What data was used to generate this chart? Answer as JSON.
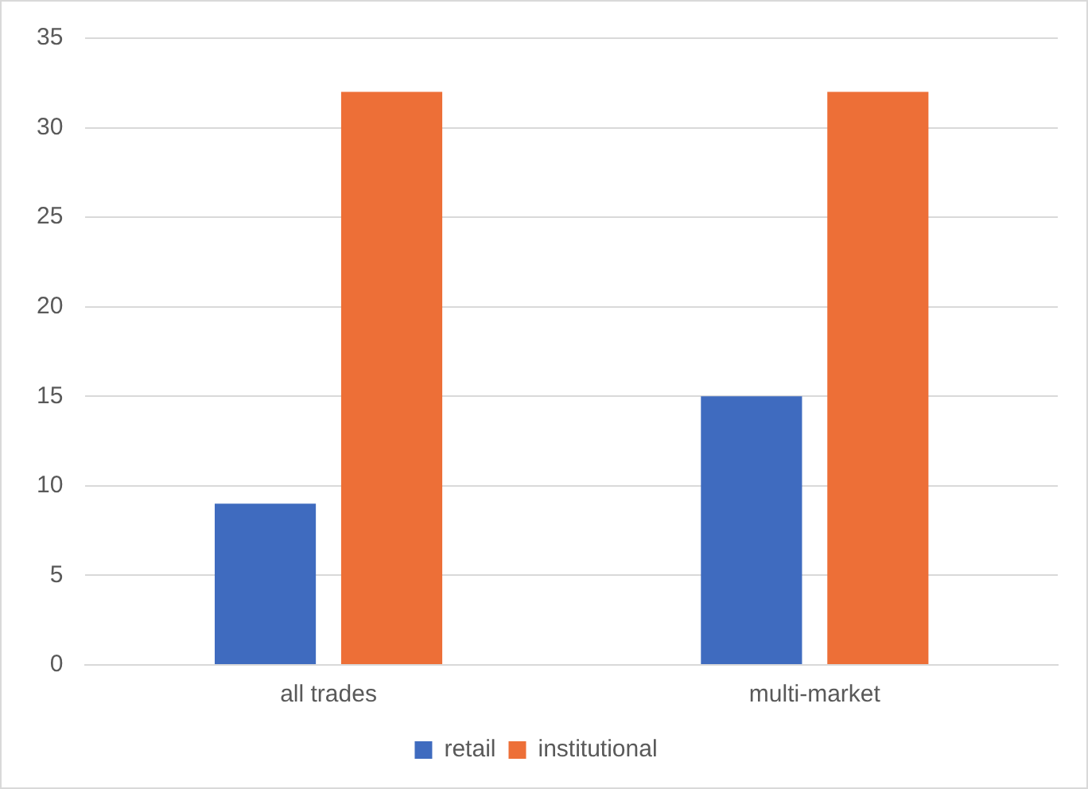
{
  "chart_data": {
    "type": "bar",
    "categories": [
      "all trades",
      "multi-market"
    ],
    "series": [
      {
        "name": "retail",
        "color": "#3f6bbf",
        "values": [
          9,
          15
        ]
      },
      {
        "name": "institutional",
        "color": "#ed6f37",
        "values": [
          32,
          32
        ]
      }
    ],
    "ylim": [
      0,
      35
    ],
    "yticks": [
      0,
      5,
      10,
      15,
      20,
      25,
      30,
      35
    ],
    "grid": "y",
    "legend": "bottom"
  }
}
